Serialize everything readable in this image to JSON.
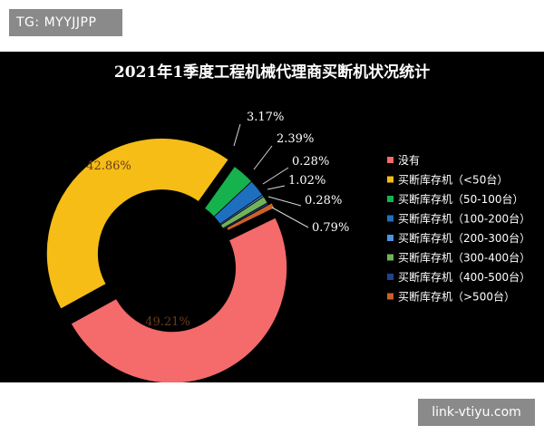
{
  "header": {
    "tag_text": "TG: MYYJJPP"
  },
  "footer": {
    "watermark_text": "link-vtiyu.com"
  },
  "chart_data": {
    "type": "pie",
    "variant": "donut",
    "title": "2021年1季度工程机械代理商买断机状况统计",
    "legend_position": "right",
    "slices": [
      {
        "name": "没有",
        "value": 49.21,
        "label": "49.21%",
        "color": "#f56a6a"
      },
      {
        "name": "买断库存机（<50台）",
        "value": 42.86,
        "label": "42.86%",
        "color": "#f5bd16"
      },
      {
        "name": "买断库存机（50-100台）",
        "value": 3.17,
        "label": "3.17%",
        "color": "#16b24e"
      },
      {
        "name": "买断库存机（100-200台）",
        "value": 2.39,
        "label": "2.39%",
        "color": "#1f6fc0"
      },
      {
        "name": "买断库存机（200-300台）",
        "value": 0.28,
        "label": "0.28%",
        "color": "#4a94e0"
      },
      {
        "name": "买断库存机（300-400台）",
        "value": 1.02,
        "label": "1.02%",
        "color": "#72b25a"
      },
      {
        "name": "买断库存机（400-500台）",
        "value": 0.28,
        "label": "0.28%",
        "color": "#23428c"
      },
      {
        "name": "买断库存机（>500台）",
        "value": 0.79,
        "label": "0.79%",
        "color": "#c9612a"
      }
    ]
  }
}
